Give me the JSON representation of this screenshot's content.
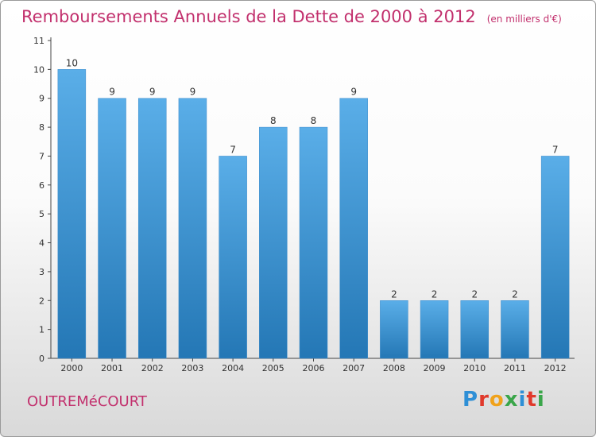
{
  "header": {
    "title": "Remboursements Annuels de la Dette de 2000 à 2012",
    "unit": "(en milliers d'€)"
  },
  "footer": {
    "commune": "OUTREMéCOURT",
    "logo_letters": [
      "P",
      "r",
      "o",
      "x",
      "i",
      "t",
      "i"
    ],
    "logo_colors": [
      "#2e8fd6",
      "#e0392b",
      "#f0a21b",
      "#3aa64a",
      "#2e8fd6",
      "#e0392b",
      "#3aa64a"
    ]
  },
  "colors": {
    "bar_top": "#5aaee8",
    "bar_bottom": "#2477b5",
    "axis": "#444444",
    "text": "#333333"
  },
  "chart_data": {
    "type": "bar",
    "categories": [
      "2000",
      "2001",
      "2002",
      "2003",
      "2004",
      "2005",
      "2006",
      "2007",
      "2008",
      "2009",
      "2010",
      "2011",
      "2012"
    ],
    "values": [
      10,
      9,
      9,
      9,
      7,
      8,
      8,
      9,
      2,
      2,
      2,
      2,
      7
    ],
    "yticks": [
      0,
      1,
      2,
      3,
      4,
      5,
      6,
      7,
      8,
      9,
      10,
      11
    ],
    "ylim": [
      0,
      11
    ],
    "grid": false
  }
}
